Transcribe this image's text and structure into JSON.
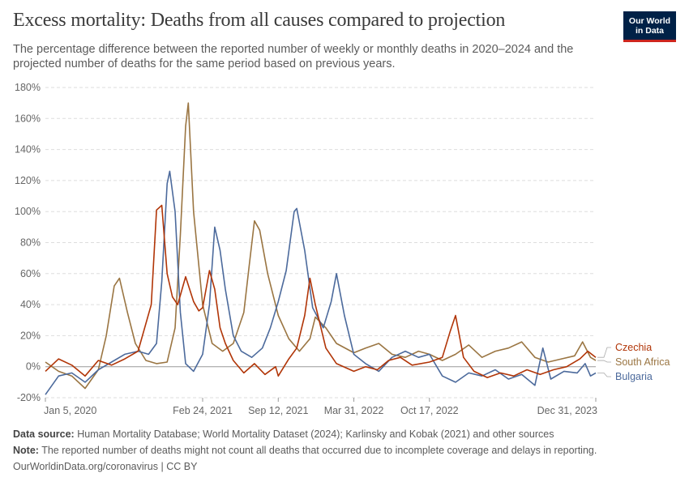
{
  "header": {
    "title": "Excess mortality: Deaths from all causes compared to projection",
    "subtitle": "The percentage difference between the reported number of weekly or monthly deaths in 2020–2024 and the projected number of deaths for the same period based on previous years.",
    "logo_line1": "Our World",
    "logo_line2": "in Data"
  },
  "footer": {
    "source_label": "Data source:",
    "source_text": "Human Mortality Database; World Mortality Dataset (2024); Karlinsky and Kobak (2021) and other sources",
    "note_label": "Note:",
    "note_text": "The reported number of deaths might not count all deaths that occurred due to incomplete coverage and delays in reporting.",
    "credit_link": "OurWorldinData.org/coronavirus",
    "credit_license": " | CC BY"
  },
  "colors": {
    "czechia": "#b13507",
    "south_africa": "#9a7542",
    "bulgaria": "#4c6a9c",
    "grid": "#dddddd",
    "zero_line": "#999999"
  },
  "chart_data": {
    "type": "line",
    "x_type": "date",
    "x_tick_labels": [
      "Jan 5, 2020",
      "Feb 24, 2021",
      "Sep 12, 2021",
      "Mar 31, 2022",
      "Oct 17, 2022",
      "Dec 31, 2023"
    ],
    "x_tick_dates": [
      "2020-01-05",
      "2021-02-24",
      "2021-09-12",
      "2022-03-31",
      "2022-10-17",
      "2023-12-31"
    ],
    "xlim": [
      "2020-01-05",
      "2023-12-31"
    ],
    "y_ticks": [
      -20,
      0,
      20,
      40,
      60,
      80,
      100,
      120,
      140,
      160,
      180
    ],
    "y_tick_labels": [
      "-20%",
      "0%",
      "20%",
      "40%",
      "60%",
      "80%",
      "100%",
      "120%",
      "140%",
      "160%",
      "180%"
    ],
    "ylim": [
      -20,
      180
    ],
    "grid": true,
    "legend_placement": "right end labels",
    "series": [
      {
        "name": "Czechia",
        "color_key": "czechia",
        "points": [
          [
            "2020-01-05",
            -3
          ],
          [
            "2020-02-09",
            5
          ],
          [
            "2020-03-15",
            1
          ],
          [
            "2020-04-19",
            -6
          ],
          [
            "2020-05-24",
            4
          ],
          [
            "2020-06-28",
            1
          ],
          [
            "2020-08-02",
            5
          ],
          [
            "2020-09-06",
            10
          ],
          [
            "2020-10-11",
            40
          ],
          [
            "2020-10-25",
            101
          ],
          [
            "2020-11-08",
            104
          ],
          [
            "2020-11-22",
            60
          ],
          [
            "2020-12-06",
            45
          ],
          [
            "2020-12-20",
            40
          ],
          [
            "2021-01-10",
            58
          ],
          [
            "2021-01-31",
            42
          ],
          [
            "2021-02-14",
            36
          ],
          [
            "2021-02-24",
            38
          ],
          [
            "2021-03-14",
            62
          ],
          [
            "2021-03-28",
            50
          ],
          [
            "2021-04-11",
            25
          ],
          [
            "2021-04-25",
            15
          ],
          [
            "2021-05-16",
            4
          ],
          [
            "2021-06-13",
            -4
          ],
          [
            "2021-07-11",
            2
          ],
          [
            "2021-08-08",
            -5
          ],
          [
            "2021-09-05",
            0
          ],
          [
            "2021-09-12",
            -6
          ],
          [
            "2021-10-10",
            5
          ],
          [
            "2021-10-31",
            12
          ],
          [
            "2021-11-21",
            33
          ],
          [
            "2021-12-05",
            57
          ],
          [
            "2021-12-19",
            40
          ],
          [
            "2022-01-16",
            12
          ],
          [
            "2022-02-13",
            2
          ],
          [
            "2022-03-31",
            -3
          ],
          [
            "2022-05-01",
            0
          ],
          [
            "2022-06-01",
            -2
          ],
          [
            "2022-07-01",
            4
          ],
          [
            "2022-08-01",
            6
          ],
          [
            "2022-09-01",
            1
          ],
          [
            "2022-10-17",
            3
          ],
          [
            "2022-11-20",
            6
          ],
          [
            "2022-12-11",
            23
          ],
          [
            "2022-12-25",
            33
          ],
          [
            "2023-01-15",
            6
          ],
          [
            "2023-02-12",
            -3
          ],
          [
            "2023-03-19",
            -7
          ],
          [
            "2023-04-23",
            -4
          ],
          [
            "2023-05-28",
            -6
          ],
          [
            "2023-07-02",
            -2
          ],
          [
            "2023-08-06",
            -5
          ],
          [
            "2023-09-10",
            -2
          ],
          [
            "2023-10-15",
            0
          ],
          [
            "2023-11-19",
            5
          ],
          [
            "2023-12-10",
            10
          ],
          [
            "2023-12-31",
            6
          ]
        ]
      },
      {
        "name": "South Africa",
        "color_key": "south_africa",
        "points": [
          [
            "2020-01-05",
            3
          ],
          [
            "2020-02-09",
            -3
          ],
          [
            "2020-03-15",
            -6
          ],
          [
            "2020-04-19",
            -14
          ],
          [
            "2020-05-24",
            -2
          ],
          [
            "2020-06-14",
            20
          ],
          [
            "2020-07-05",
            52
          ],
          [
            "2020-07-19",
            57
          ],
          [
            "2020-08-09",
            35
          ],
          [
            "2020-08-30",
            15
          ],
          [
            "2020-09-27",
            4
          ],
          [
            "2020-10-25",
            2
          ],
          [
            "2020-11-22",
            3
          ],
          [
            "2020-12-13",
            25
          ],
          [
            "2020-12-27",
            85
          ],
          [
            "2021-01-10",
            155
          ],
          [
            "2021-01-17",
            170
          ],
          [
            "2021-01-31",
            100
          ],
          [
            "2021-02-24",
            40
          ],
          [
            "2021-03-21",
            15
          ],
          [
            "2021-04-18",
            10
          ],
          [
            "2021-05-16",
            15
          ],
          [
            "2021-06-13",
            35
          ],
          [
            "2021-06-27",
            65
          ],
          [
            "2021-07-11",
            94
          ],
          [
            "2021-07-25",
            88
          ],
          [
            "2021-08-15",
            60
          ],
          [
            "2021-09-12",
            33
          ],
          [
            "2021-10-10",
            18
          ],
          [
            "2021-11-07",
            10
          ],
          [
            "2021-12-05",
            18
          ],
          [
            "2021-12-19",
            32
          ],
          [
            "2022-01-16",
            25
          ],
          [
            "2022-02-13",
            15
          ],
          [
            "2022-03-31",
            9
          ],
          [
            "2022-05-01",
            12
          ],
          [
            "2022-06-05",
            15
          ],
          [
            "2022-07-10",
            8
          ],
          [
            "2022-08-14",
            6
          ],
          [
            "2022-09-18",
            10
          ],
          [
            "2022-10-17",
            8
          ],
          [
            "2022-11-20",
            4
          ],
          [
            "2022-12-25",
            8
          ],
          [
            "2023-01-29",
            14
          ],
          [
            "2023-03-05",
            6
          ],
          [
            "2023-04-09",
            10
          ],
          [
            "2023-05-14",
            12
          ],
          [
            "2023-06-18",
            16
          ],
          [
            "2023-07-23",
            6
          ],
          [
            "2023-08-27",
            3
          ],
          [
            "2023-10-01",
            5
          ],
          [
            "2023-11-05",
            7
          ],
          [
            "2023-11-26",
            16
          ],
          [
            "2023-12-17",
            6
          ],
          [
            "2023-12-31",
            4
          ]
        ]
      },
      {
        "name": "Bulgaria",
        "color_key": "bulgaria",
        "points": [
          [
            "2020-01-05",
            -18
          ],
          [
            "2020-02-09",
            -6
          ],
          [
            "2020-03-15",
            -4
          ],
          [
            "2020-04-19",
            -10
          ],
          [
            "2020-05-24",
            -2
          ],
          [
            "2020-06-28",
            3
          ],
          [
            "2020-08-02",
            8
          ],
          [
            "2020-09-06",
            10
          ],
          [
            "2020-10-04",
            8
          ],
          [
            "2020-10-25",
            15
          ],
          [
            "2020-11-08",
            55
          ],
          [
            "2020-11-22",
            118
          ],
          [
            "2020-11-29",
            126
          ],
          [
            "2020-12-13",
            100
          ],
          [
            "2020-12-27",
            35
          ],
          [
            "2021-01-10",
            2
          ],
          [
            "2021-01-31",
            -3
          ],
          [
            "2021-02-24",
            8
          ],
          [
            "2021-03-14",
            40
          ],
          [
            "2021-03-28",
            90
          ],
          [
            "2021-04-11",
            75
          ],
          [
            "2021-04-25",
            50
          ],
          [
            "2021-05-16",
            20
          ],
          [
            "2021-06-06",
            10
          ],
          [
            "2021-07-04",
            6
          ],
          [
            "2021-08-01",
            12
          ],
          [
            "2021-08-22",
            25
          ],
          [
            "2021-09-12",
            42
          ],
          [
            "2021-10-03",
            62
          ],
          [
            "2021-10-24",
            100
          ],
          [
            "2021-10-31",
            102
          ],
          [
            "2021-11-21",
            75
          ],
          [
            "2021-12-12",
            38
          ],
          [
            "2022-01-09",
            25
          ],
          [
            "2022-01-30",
            42
          ],
          [
            "2022-02-13",
            60
          ],
          [
            "2022-03-06",
            33
          ],
          [
            "2022-03-31",
            8
          ],
          [
            "2022-05-01",
            2
          ],
          [
            "2022-06-05",
            -3
          ],
          [
            "2022-07-10",
            6
          ],
          [
            "2022-08-14",
            10
          ],
          [
            "2022-09-18",
            6
          ],
          [
            "2022-10-17",
            8
          ],
          [
            "2022-11-20",
            -6
          ],
          [
            "2022-12-25",
            -10
          ],
          [
            "2023-01-29",
            -4
          ],
          [
            "2023-03-05",
            -6
          ],
          [
            "2023-04-09",
            -2
          ],
          [
            "2023-05-14",
            -8
          ],
          [
            "2023-06-18",
            -5
          ],
          [
            "2023-07-23",
            -12
          ],
          [
            "2023-08-13",
            12
          ],
          [
            "2023-09-03",
            -8
          ],
          [
            "2023-10-08",
            -3
          ],
          [
            "2023-11-12",
            -4
          ],
          [
            "2023-12-03",
            2
          ],
          [
            "2023-12-17",
            -6
          ],
          [
            "2023-12-31",
            -4
          ]
        ]
      }
    ]
  }
}
